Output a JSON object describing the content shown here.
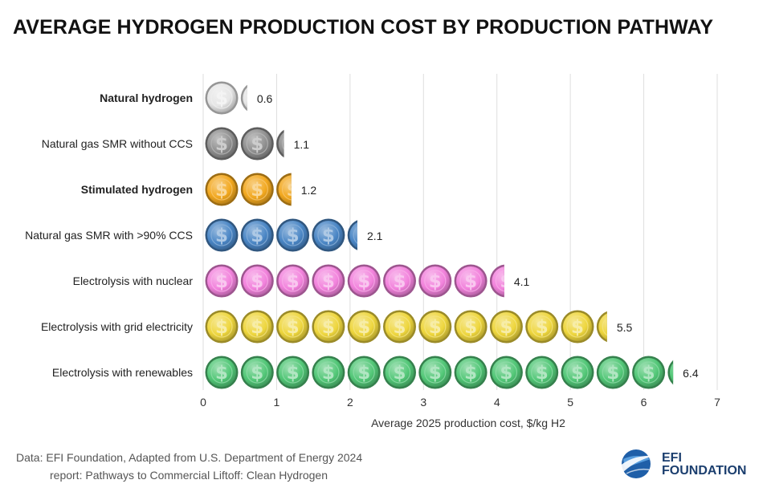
{
  "title": "AVERAGE HYDROGEN PRODUCTION COST BY PRODUCTION PATHWAY",
  "source": {
    "line1": "Data: EFI Foundation, Adapted from U.S. Department of Energy 2024",
    "line2": "report: Pathways to Commercial Liftoff: Clean Hydrogen"
  },
  "logo": {
    "line1": "EFI",
    "line2": "FOUNDATION"
  },
  "chart_data": {
    "type": "bar",
    "orientation": "horizontal",
    "title": "AVERAGE HYDROGEN PRODUCTION COST BY PRODUCTION PATHWAY",
    "xlabel": "Average 2025 production cost, $/kg H2",
    "ylabel": "",
    "xlim": [
      0,
      7
    ],
    "xticks": [
      "0",
      "1",
      "2",
      "3",
      "4",
      "5",
      "6",
      "7"
    ],
    "grid": true,
    "categories": [
      "Natural hydrogen",
      "Natural gas SMR without CCS",
      "Stimulated hydrogen",
      "Natural gas SMR with >90% CCS",
      "Electrolysis with nuclear",
      "Electrolysis with grid electricity",
      "Electrolysis with renewables"
    ],
    "values": [
      0.6,
      1.1,
      1.2,
      2.1,
      4.1,
      5.5,
      6.4
    ],
    "value_labels": [
      "0.6",
      "1.1",
      "1.2",
      "2.1",
      "4.1",
      "5.5",
      "6.4"
    ],
    "bold": [
      true,
      false,
      true,
      false,
      false,
      false,
      false
    ],
    "colors": [
      "#e6e6e6",
      "#8f8f8f",
      "#f2a81f",
      "#4a86c5",
      "#f282dc",
      "#eed63d",
      "#52c777"
    ],
    "coin_symbol": "$"
  }
}
